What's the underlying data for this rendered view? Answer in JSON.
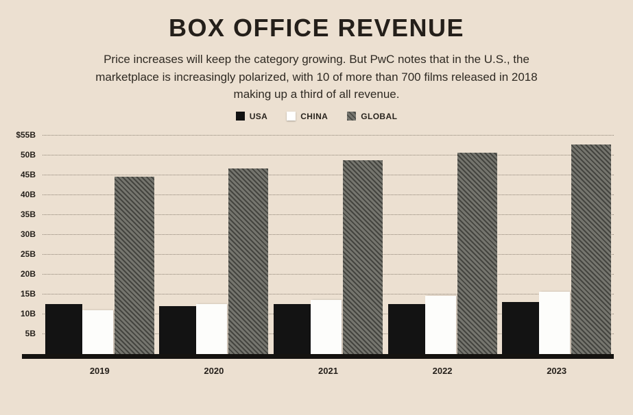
{
  "header": {
    "title": "BOX OFFICE REVENUE",
    "subtitle": "Price increases will keep the category growing. But PwC notes that in the U.S., the marketplace is increasingly polarized, with 10 of more than 700 films released in 2018 making up a third of all revenue."
  },
  "colors": {
    "background": "#ece0d1",
    "text": "#29241e",
    "axis_line": "#151310",
    "gridline": "#8d8274"
  },
  "chart_data": {
    "type": "bar",
    "title": "BOX OFFICE REVENUE",
    "categories": [
      "2019",
      "2020",
      "2021",
      "2022",
      "2023"
    ],
    "series": [
      {
        "name": "USA",
        "color": "#131313",
        "pattern": "solid",
        "values": [
          12.5,
          12,
          12.5,
          12.5,
          13
        ]
      },
      {
        "name": "CHINA",
        "color": "#ffffff",
        "pattern": "solid",
        "values": [
          11,
          12.5,
          13.5,
          14.5,
          15.5
        ]
      },
      {
        "name": "GLOBAL",
        "color": "#6e6e68",
        "pattern": "diagonal-hatch",
        "values": [
          44.5,
          46.5,
          48.5,
          50.5,
          52.5
        ]
      }
    ],
    "ylabel": "",
    "xlabel": "",
    "ylim": [
      0,
      55
    ],
    "ytick_step": 5,
    "yticks": [
      55,
      50,
      45,
      40,
      35,
      30,
      25,
      20,
      15,
      10,
      5
    ],
    "ytick_labels": [
      "$55B",
      "50B",
      "45B",
      "40B",
      "35B",
      "30B",
      "25B",
      "20B",
      "15B",
      "10B",
      "5B"
    ],
    "grid": "dotted-horizontal",
    "legend_position": "top-center"
  }
}
